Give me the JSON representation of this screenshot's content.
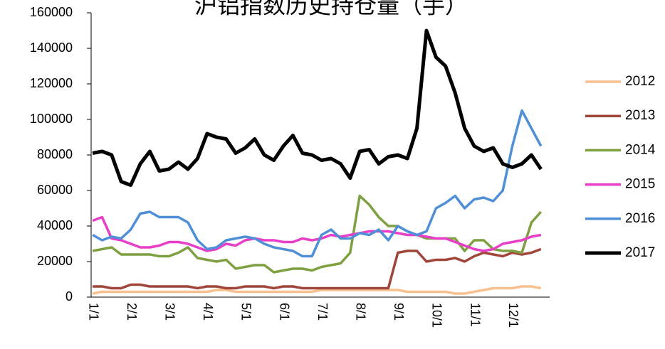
{
  "chart_data": {
    "type": "line",
    "title": "沪铝指数历史持仓量（手）",
    "categories": [
      "1/1",
      null,
      null,
      null,
      "2/1",
      null,
      null,
      null,
      "3/1",
      null,
      null,
      null,
      "4/1",
      null,
      null,
      null,
      "5/1",
      null,
      null,
      null,
      "6/1",
      null,
      null,
      null,
      "7/1",
      null,
      null,
      null,
      "8/1",
      null,
      null,
      null,
      "9/1",
      null,
      null,
      null,
      "10/1",
      null,
      null,
      null,
      "11/1",
      null,
      null,
      null,
      "12/1",
      null,
      null,
      null
    ],
    "series": [
      {
        "name": "2012",
        "color": "#f9c08f",
        "values": [
          2000,
          3000,
          3000,
          3000,
          3000,
          3000,
          3000,
          3000,
          3000,
          3000,
          3000,
          3000,
          3000,
          4000,
          4000,
          3000,
          3000,
          3000,
          3000,
          3000,
          3000,
          3000,
          3000,
          3000,
          4000,
          4000,
          4000,
          4000,
          4000,
          4000,
          4000,
          4000,
          4000,
          3000,
          3000,
          3000,
          3000,
          3000,
          2000,
          2000,
          3000,
          4000,
          5000,
          5000,
          5000,
          6000,
          6000,
          5000
        ]
      },
      {
        "name": "2013",
        "color": "#a0453a",
        "values": [
          6000,
          6000,
          5000,
          5000,
          7000,
          7000,
          6000,
          6000,
          6000,
          6000,
          6000,
          5000,
          6000,
          6000,
          5000,
          5000,
          6000,
          6000,
          6000,
          5000,
          6000,
          6000,
          5000,
          5000,
          5000,
          5000,
          5000,
          5000,
          5000,
          5000,
          5000,
          5000,
          25000,
          26000,
          26000,
          20000,
          21000,
          21000,
          22000,
          20000,
          23000,
          25000,
          24000,
          23000,
          25000,
          24000,
          25000,
          27000
        ]
      },
      {
        "name": "2014",
        "color": "#7ea040",
        "values": [
          26000,
          27000,
          28000,
          24000,
          24000,
          24000,
          24000,
          23000,
          23000,
          25000,
          28000,
          22000,
          21000,
          20000,
          21000,
          16000,
          17000,
          18000,
          18000,
          14000,
          15000,
          16000,
          16000,
          15000,
          17000,
          18000,
          19000,
          25000,
          57000,
          52000,
          45000,
          40000,
          40000,
          37000,
          35000,
          33000,
          33000,
          33000,
          33000,
          26000,
          32000,
          32000,
          27000,
          26000,
          26000,
          25000,
          42000,
          48000
        ]
      },
      {
        "name": "2015",
        "color": "#e83ec8",
        "values": [
          43000,
          45000,
          33000,
          32000,
          30000,
          28000,
          28000,
          29000,
          31000,
          31000,
          30000,
          28000,
          26000,
          27000,
          30000,
          29000,
          32000,
          33000,
          32000,
          32000,
          31000,
          31000,
          33000,
          32000,
          33000,
          35000,
          34000,
          35000,
          36000,
          37000,
          37000,
          37000,
          36000,
          35000,
          35000,
          34000,
          33000,
          33000,
          31000,
          29000,
          27000,
          26000,
          27000,
          30000,
          31000,
          32000,
          34000,
          35000
        ]
      },
      {
        "name": "2016",
        "color": "#4f8fd8",
        "values": [
          35000,
          32000,
          34000,
          33000,
          38000,
          47000,
          48000,
          45000,
          45000,
          45000,
          42000,
          32000,
          27000,
          28000,
          32000,
          33000,
          34000,
          33000,
          30000,
          28000,
          27000,
          26000,
          23000,
          23000,
          35000,
          38000,
          33000,
          33000,
          36000,
          35000,
          38000,
          32000,
          40000,
          37000,
          35000,
          37000,
          50000,
          53000,
          57000,
          50000,
          55000,
          56000,
          54000,
          60000,
          85000,
          105000,
          95000,
          85000
        ]
      },
      {
        "name": "2017",
        "color": "#000000",
        "values": [
          81000,
          82000,
          80000,
          65000,
          63000,
          75000,
          82000,
          71000,
          72000,
          76000,
          72000,
          78000,
          92000,
          90000,
          89000,
          81000,
          84000,
          89000,
          80000,
          77000,
          85000,
          91000,
          81000,
          80000,
          77000,
          78000,
          75000,
          67000,
          82000,
          83000,
          75000,
          79000,
          80000,
          78000,
          95000,
          150000,
          135000,
          130000,
          115000,
          95000,
          85000,
          82000,
          84000,
          75000,
          73000,
          75000,
          80000,
          72000
        ]
      }
    ],
    "ylim": [
      0,
      160000
    ],
    "yticks": [
      0,
      20000,
      40000,
      60000,
      80000,
      100000,
      120000,
      140000,
      160000
    ],
    "legend": "right"
  }
}
